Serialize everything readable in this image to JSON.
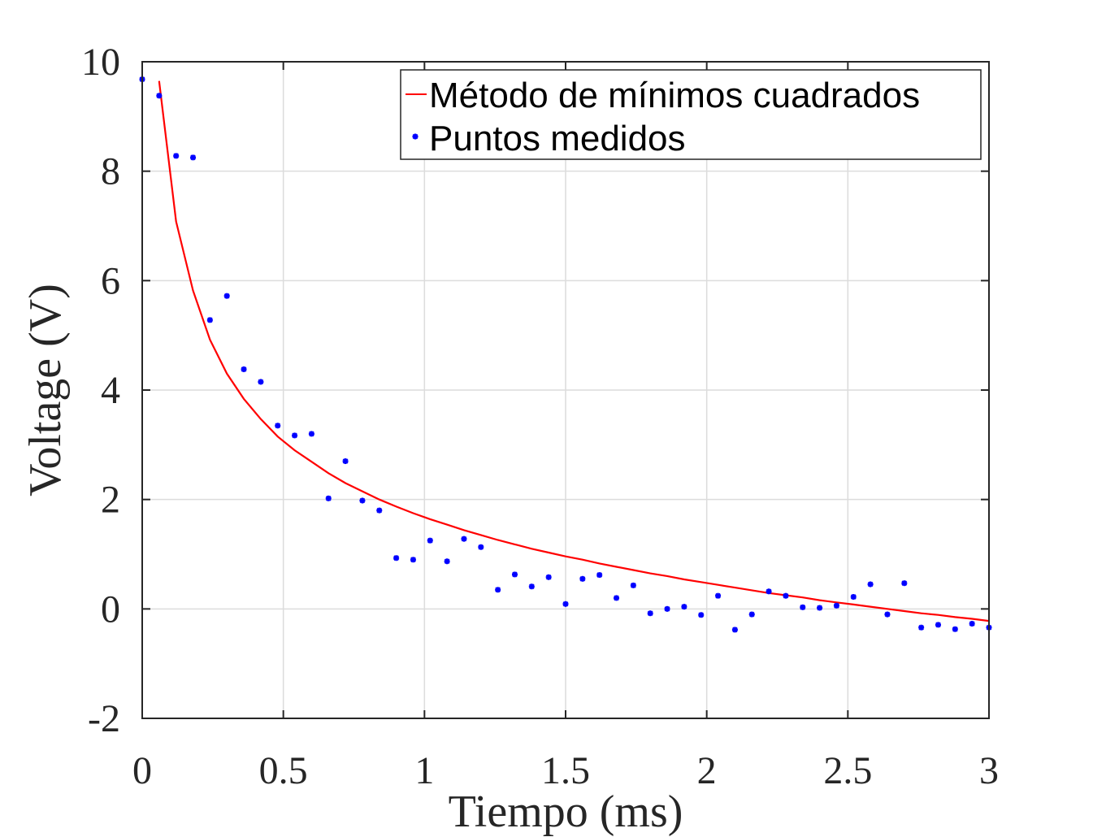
{
  "chart_data": {
    "type": "scatter",
    "xlabel": "Tiempo (ms)",
    "ylabel": "Voltage (V)",
    "xlim": [
      0,
      3
    ],
    "ylim": [
      -2,
      10
    ],
    "x_ticks": [
      0,
      0.5,
      1,
      1.5,
      2,
      2.5,
      3
    ],
    "x_tick_labels": [
      "0",
      "0.5",
      "1",
      "1.5",
      "2",
      "2.5",
      "3"
    ],
    "y_ticks": [
      -2,
      0,
      2,
      4,
      6,
      8,
      10
    ],
    "y_tick_labels": [
      "-2",
      "0",
      "2",
      "4",
      "6",
      "8",
      "10"
    ],
    "grid": true,
    "legend_position": "top-right",
    "colors": {
      "fit": "#ff0000",
      "measured": "#0000ff",
      "grid": "#dcdcdc",
      "axis": "#262626"
    },
    "series": [
      {
        "name": "Método de mínimos cuadrados",
        "kind": "line",
        "x": [
          0.06,
          0.12,
          0.18,
          0.24,
          0.3,
          0.36,
          0.42,
          0.48,
          0.54,
          0.6,
          0.66,
          0.72,
          0.78,
          0.84,
          0.9,
          0.96,
          1.02,
          1.08,
          1.14,
          1.2,
          1.26,
          1.32,
          1.38,
          1.44,
          1.5,
          1.56,
          1.62,
          1.68,
          1.74,
          1.8,
          1.86,
          1.92,
          1.98,
          2.04,
          2.1,
          2.16,
          2.22,
          2.28,
          2.34,
          2.4,
          2.46,
          2.52,
          2.58,
          2.64,
          2.7,
          2.76,
          2.82,
          2.88,
          2.94,
          3.0
        ],
        "y": [
          9.65,
          7.08,
          5.82,
          4.92,
          4.3,
          3.84,
          3.47,
          3.15,
          2.9,
          2.69,
          2.48,
          2.3,
          2.15,
          2.0,
          1.87,
          1.75,
          1.64,
          1.54,
          1.44,
          1.35,
          1.26,
          1.18,
          1.1,
          1.03,
          0.96,
          0.9,
          0.83,
          0.77,
          0.71,
          0.65,
          0.6,
          0.54,
          0.49,
          0.44,
          0.39,
          0.34,
          0.29,
          0.25,
          0.21,
          0.16,
          0.12,
          0.08,
          0.04,
          0.0,
          -0.04,
          -0.08,
          -0.11,
          -0.15,
          -0.18,
          -0.22
        ]
      },
      {
        "name": "Puntos medidos",
        "kind": "points",
        "x": [
          0.0,
          0.06,
          0.12,
          0.18,
          0.24,
          0.3,
          0.36,
          0.42,
          0.48,
          0.54,
          0.6,
          0.66,
          0.72,
          0.78,
          0.84,
          0.9,
          0.96,
          1.02,
          1.08,
          1.14,
          1.2,
          1.26,
          1.32,
          1.38,
          1.44,
          1.5,
          1.56,
          1.62,
          1.68,
          1.74,
          1.8,
          1.86,
          1.92,
          1.98,
          2.04,
          2.1,
          2.16,
          2.22,
          2.28,
          2.34,
          2.4,
          2.46,
          2.52,
          2.58,
          2.64,
          2.7,
          2.76,
          2.82,
          2.88,
          2.94,
          3.0
        ],
        "y": [
          9.68,
          9.38,
          8.28,
          8.25,
          5.28,
          5.72,
          4.38,
          4.15,
          3.35,
          3.17,
          3.2,
          2.02,
          2.7,
          1.98,
          1.8,
          0.93,
          0.9,
          1.25,
          0.87,
          1.28,
          1.13,
          0.35,
          0.63,
          0.41,
          0.58,
          0.09,
          0.55,
          0.62,
          0.2,
          0.43,
          -0.08,
          0.0,
          0.04,
          -0.11,
          0.24,
          -0.38,
          -0.1,
          0.32,
          0.24,
          0.03,
          0.02,
          0.06,
          0.22,
          0.45,
          -0.1,
          0.47,
          -0.34,
          -0.29,
          -0.37,
          -0.27,
          -0.34
        ]
      }
    ]
  }
}
